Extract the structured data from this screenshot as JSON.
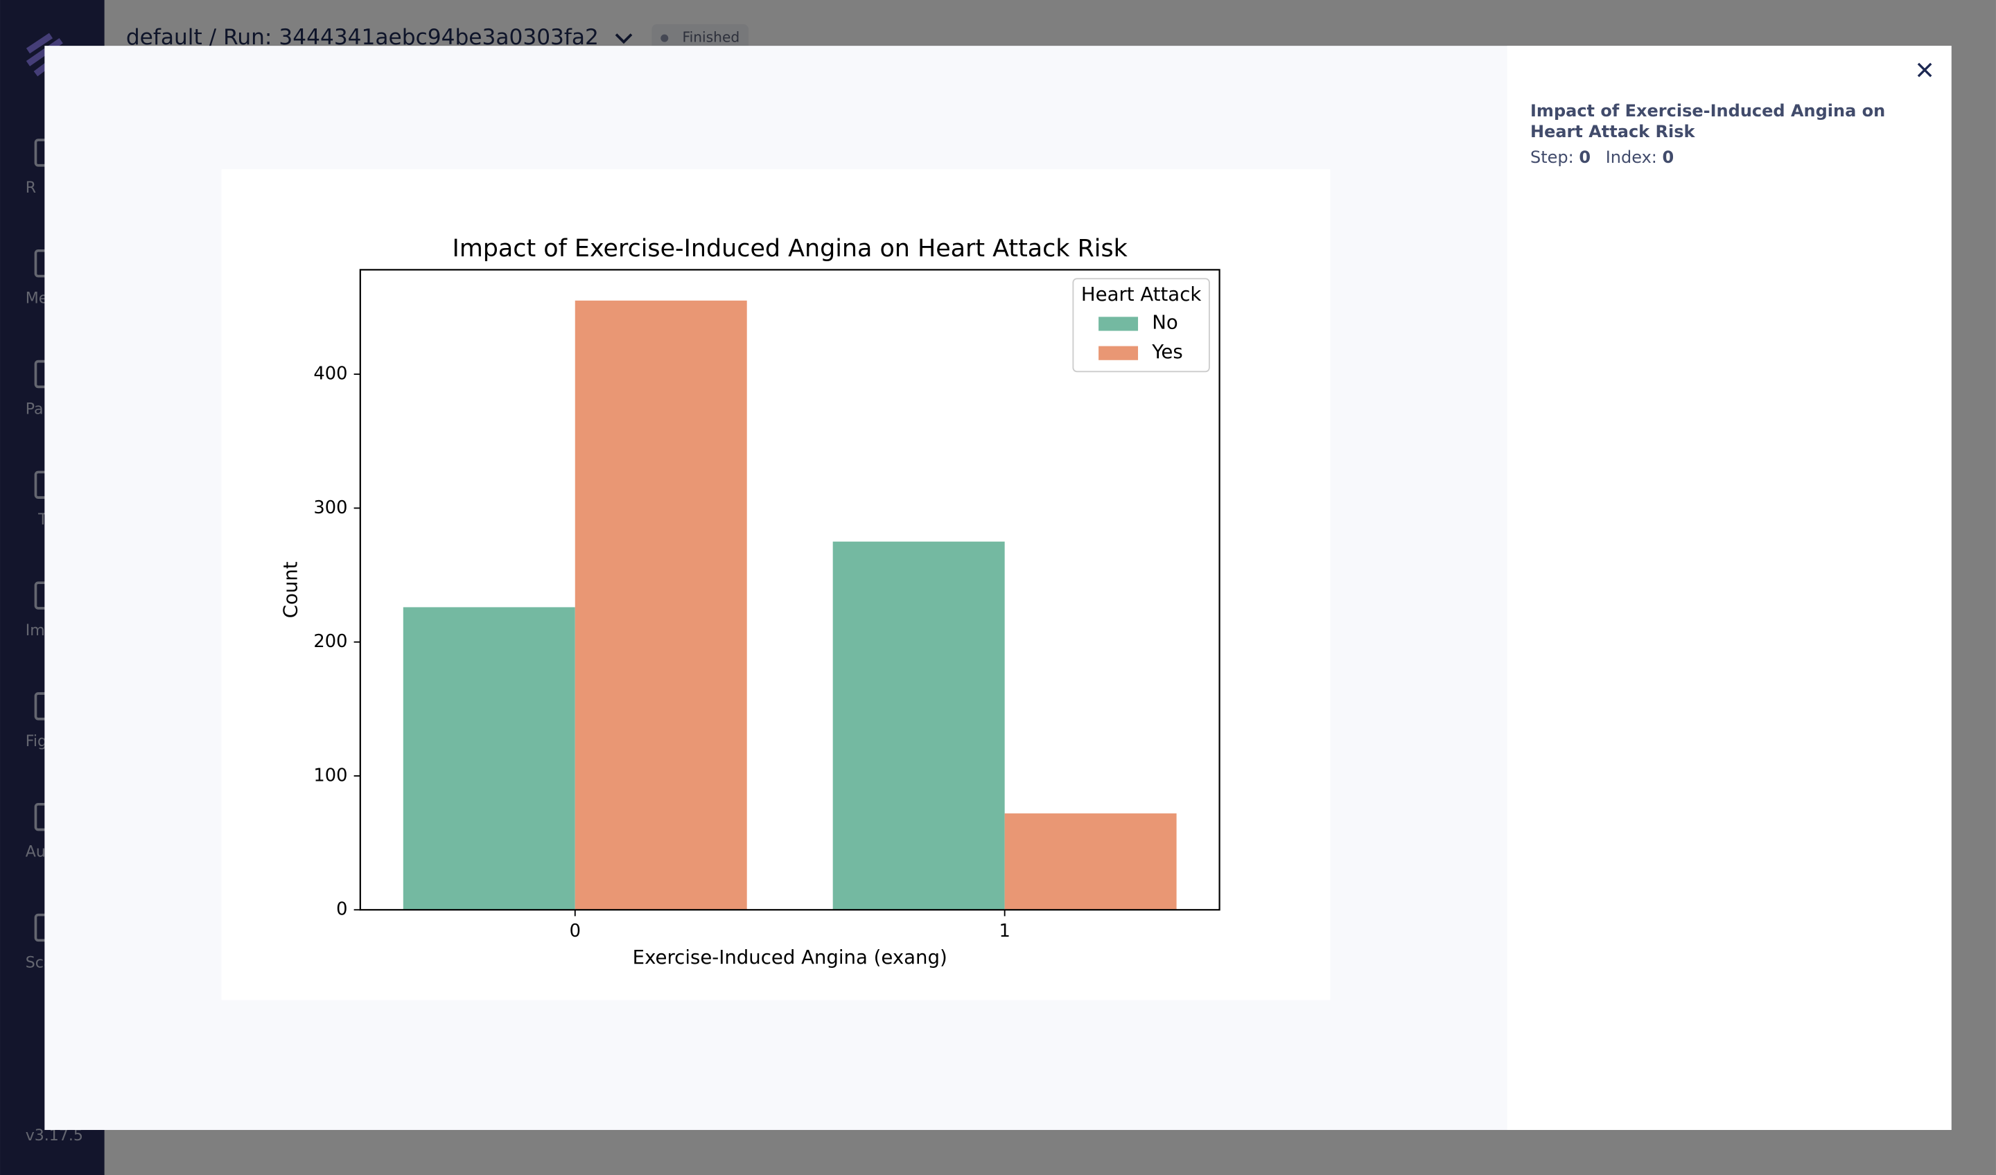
{
  "app": {
    "breadcrumb": "default / Run: 3444341aebc94be3a0303fa2",
    "status": "Finished",
    "sidebar": [
      "R",
      "Me",
      "Pa",
      "T",
      "Im",
      "Fig",
      "Au",
      "Sca"
    ],
    "version": "v3.17.5"
  },
  "panel": {
    "title": "Impact of Exercise-Induced Angina on Heart Attack Risk",
    "step_label": "Step:",
    "step": 0,
    "index_label": "Index:",
    "index": 0
  },
  "chart_data": {
    "type": "bar",
    "title": "Impact of Exercise-Induced Angina on Heart Attack Risk",
    "x_label": "Exercise-Induced Angina (exang)",
    "y_label": "Count",
    "categories": [
      "0",
      "1"
    ],
    "series": [
      {
        "name": "No",
        "color": "#74b9a1",
        "values": [
          226,
          275
        ]
      },
      {
        "name": "Yes",
        "color": "#e99774",
        "values": [
          455,
          72
        ]
      }
    ],
    "legend_title": "Heart Attack",
    "legend": "upper right",
    "ylim": [
      0,
      478
    ],
    "yticks": [
      0,
      100,
      200,
      300,
      400
    ],
    "grid": false
  }
}
